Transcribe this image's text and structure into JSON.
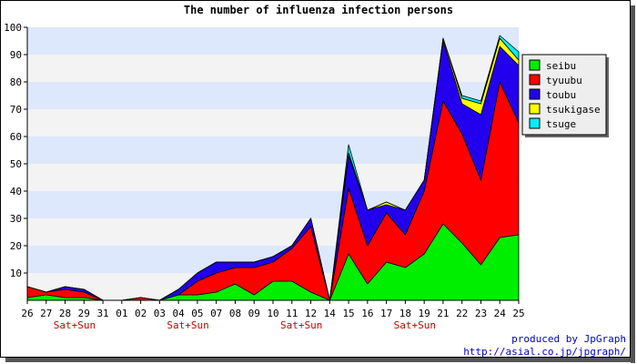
{
  "chart_data": {
    "type": "area",
    "stacked": true,
    "title": "The number of influenza infection persons",
    "xlabel": "",
    "ylabel": "",
    "ylim": [
      0,
      100
    ],
    "yticks": [
      10,
      20,
      30,
      40,
      50,
      60,
      70,
      80,
      90,
      100
    ],
    "grid": true,
    "legend_position": "right",
    "categories": [
      "26",
      "27",
      "28",
      "29",
      "31",
      "01",
      "02",
      "03",
      "04",
      "05",
      "07",
      "08",
      "09",
      "10",
      "11",
      "12",
      "14",
      "15",
      "16",
      "17",
      "18",
      "19",
      "21",
      "22",
      "23",
      "24",
      "25"
    ],
    "weekend_labels": [
      {
        "after": "28",
        "text": "Sat+Sun"
      },
      {
        "after": "04",
        "text": "Sat+Sun"
      },
      {
        "after": "11",
        "text": "Sat+Sun"
      },
      {
        "after": "18",
        "text": "Sat+Sun"
      }
    ],
    "series": [
      {
        "name": "seibu",
        "color": "#00ee00",
        "values": [
          1,
          2,
          1,
          1,
          0,
          0,
          0,
          0,
          2,
          2,
          3,
          6,
          2,
          7,
          7,
          3,
          0,
          17,
          6,
          14,
          12,
          17,
          28,
          21,
          13,
          23,
          24
        ]
      },
      {
        "name": "tyuubu",
        "color": "#ff0000",
        "values": [
          4,
          1,
          3,
          2,
          0,
          0,
          1,
          0,
          0,
          5,
          7,
          6,
          10,
          7,
          12,
          24,
          0,
          24,
          14,
          18,
          12,
          23,
          45,
          40,
          31,
          57,
          41
        ]
      },
      {
        "name": "toubu",
        "color": "#2200ee",
        "values": [
          0,
          0,
          1,
          1,
          0,
          0,
          0,
          0,
          2,
          3,
          4,
          2,
          2,
          2,
          1,
          3,
          0,
          12,
          13,
          3,
          9,
          4,
          22,
          11,
          24,
          13,
          21
        ]
      },
      {
        "name": "tsukigase",
        "color": "#ffff00",
        "values": [
          0,
          0,
          0,
          0,
          0,
          0,
          0,
          0,
          0,
          0,
          0,
          0,
          0,
          0,
          0,
          0,
          0,
          1,
          0,
          1,
          0,
          0,
          1,
          2,
          4,
          3,
          2
        ]
      },
      {
        "name": "tsuge",
        "color": "#00eeff",
        "values": [
          0,
          0,
          0,
          0,
          0,
          0,
          0,
          0,
          0,
          0,
          0,
          0,
          0,
          0,
          0,
          0,
          0,
          3,
          0,
          0,
          0,
          0,
          0,
          1,
          1,
          1,
          3
        ]
      }
    ]
  },
  "credit": {
    "line1": "produced by JpGraph",
    "line2": "http://asial.co.jp/jpgraph/"
  },
  "colors": {
    "band_light": "#f3f3f3",
    "band_blue": "#dde8fc",
    "weekend_text": "#cc0000",
    "credit_text": "#0000cc"
  }
}
